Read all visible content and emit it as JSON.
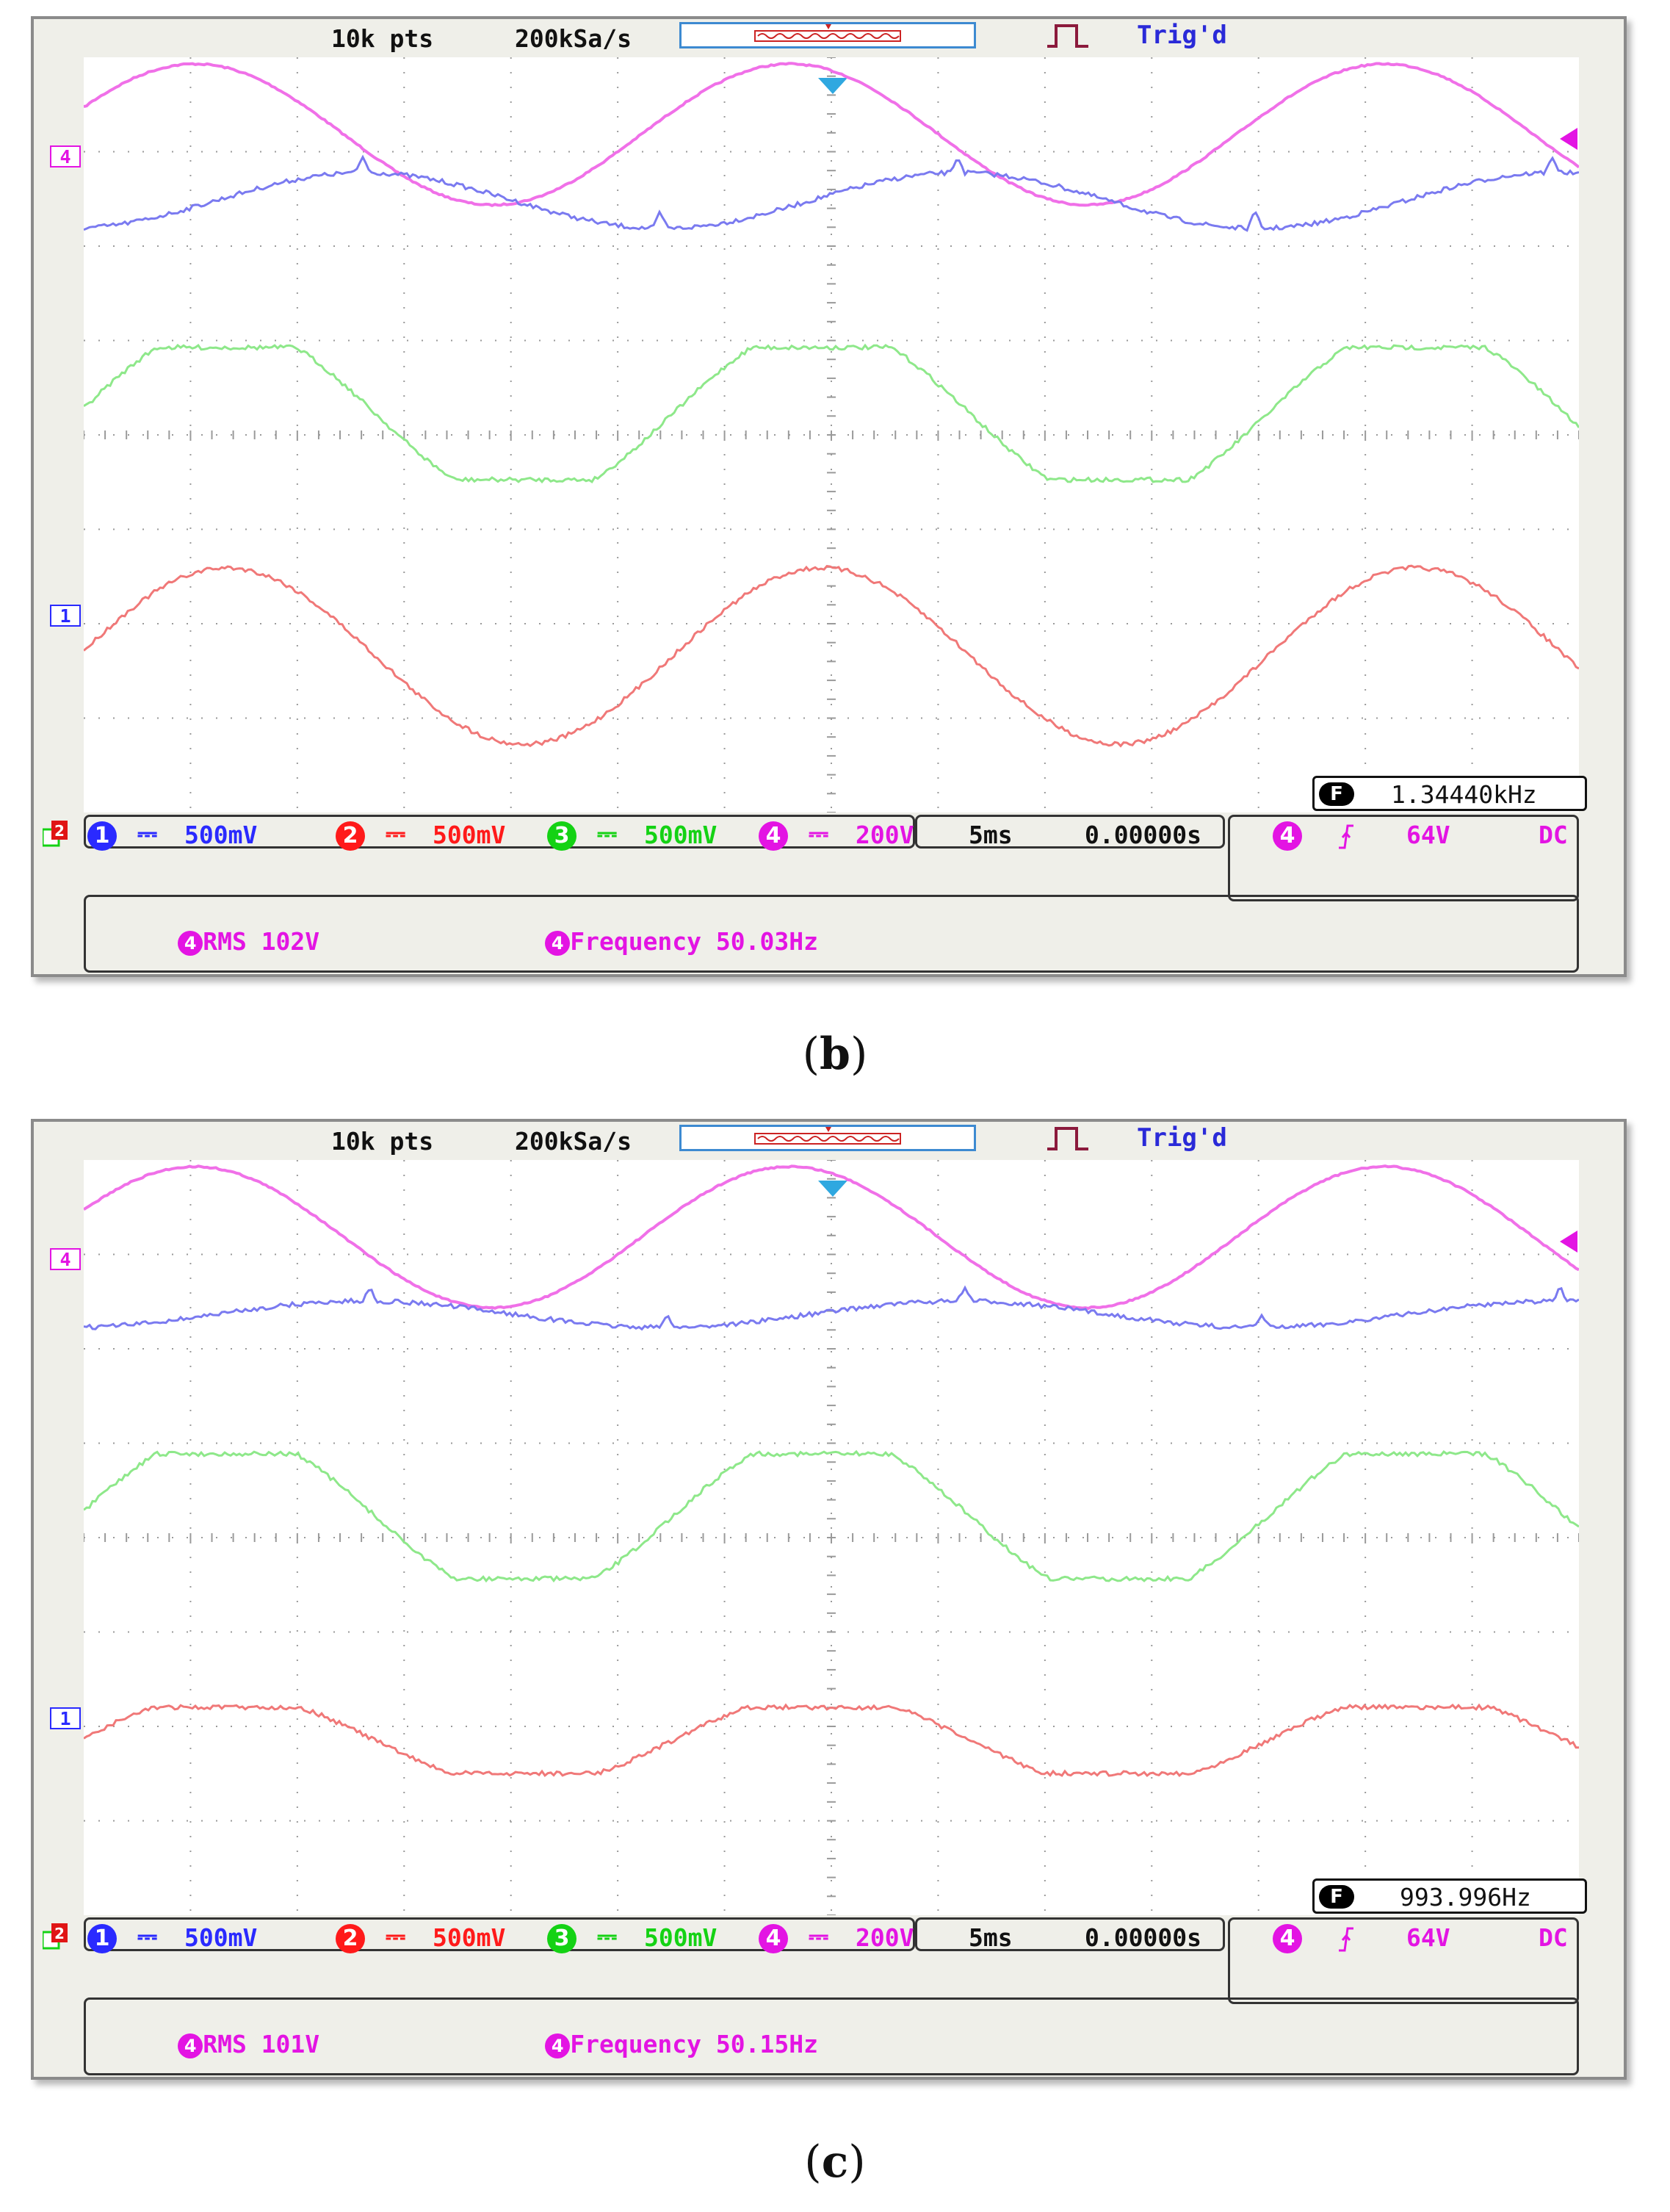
{
  "panels": [
    {
      "id": "b",
      "top_bar": {
        "points": "10k pts",
        "sample_rate": "200kSa/s",
        "trigger_status": "Trig'd"
      },
      "channel_markers": {
        "ch4": "4",
        "ch1": "1",
        "ch2": "2"
      },
      "frequency_counter": {
        "badge": "F",
        "value": "1.34440kHz"
      },
      "scales": [
        {
          "channel": "1",
          "coupling": "⎓",
          "value": "500mV",
          "color": "#2a2aff"
        },
        {
          "channel": "2",
          "coupling": "⎓",
          "value": "500mV",
          "color": "#ff1a1a"
        },
        {
          "channel": "3",
          "coupling": "⎓",
          "value": "500mV",
          "color": "#14d214"
        },
        {
          "channel": "4",
          "coupling": "⎓",
          "value": "200V",
          "color": "#e314e3"
        }
      ],
      "timebase": {
        "time_div": "5ms",
        "delay": "0.00000s"
      },
      "trigger": {
        "channel": "4",
        "edge_icon": "rising-edge",
        "level": "64V",
        "coupling": "DC"
      },
      "measurements": [
        {
          "channel": "4",
          "label": "RMS 102V"
        },
        {
          "channel": "4",
          "label": "Frequency 50.03Hz"
        }
      ],
      "caption": {
        "letter": "b",
        "text": "(b)"
      }
    },
    {
      "id": "c",
      "top_bar": {
        "points": "10k pts",
        "sample_rate": "200kSa/s",
        "trigger_status": "Trig'd"
      },
      "channel_markers": {
        "ch4": "4",
        "ch1": "1",
        "ch2": "2"
      },
      "frequency_counter": {
        "badge": "F",
        "value": "993.996Hz"
      },
      "scales": [
        {
          "channel": "1",
          "coupling": "⎓",
          "value": "500mV",
          "color": "#2a2aff"
        },
        {
          "channel": "2",
          "coupling": "⎓",
          "value": "500mV",
          "color": "#ff1a1a"
        },
        {
          "channel": "3",
          "coupling": "⎓",
          "value": "500mV",
          "color": "#14d214"
        },
        {
          "channel": "4",
          "coupling": "⎓",
          "value": "200V",
          "color": "#e314e3"
        }
      ],
      "timebase": {
        "time_div": "5ms",
        "delay": "0.00000s"
      },
      "trigger": {
        "channel": "4",
        "edge_icon": "rising-edge",
        "level": "64V",
        "coupling": "DC"
      },
      "measurements": [
        {
          "channel": "4",
          "label": "RMS 101V"
        },
        {
          "channel": "4",
          "label": "Frequency 50.15Hz"
        }
      ],
      "caption": {
        "letter": "c",
        "text": "(c)"
      }
    }
  ],
  "trace_colors": {
    "ch4": "#f070e8",
    "ch1": "#7a7af0",
    "ch3": "#8ee88a",
    "ch2": "#f07878"
  }
}
